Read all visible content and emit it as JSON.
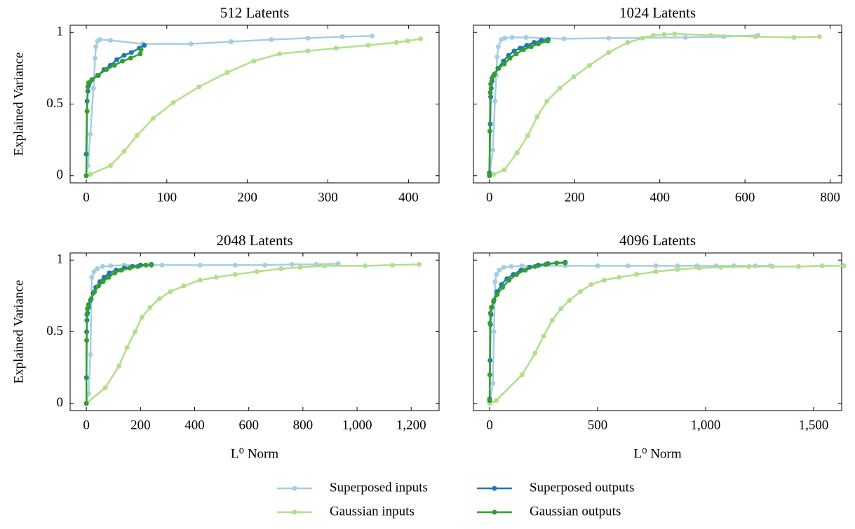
{
  "chart_data": [
    {
      "type": "line",
      "title": "512 Latents",
      "ylabel": "Explained Variance",
      "legend": "bottom",
      "xlim": [
        -20,
        438
      ],
      "xticks": [
        0,
        100,
        200,
        300,
        400
      ],
      "ylim": [
        -0.05,
        1.05
      ],
      "yticks": [
        0,
        0.5,
        1
      ],
      "show_ytick_labels": true,
      "series": [
        {
          "name": "Superposed inputs",
          "color": "#a6cee3",
          "x": [
            0,
            2,
            5,
            9,
            11,
            12,
            14,
            17,
            30,
            70,
            130,
            180,
            230,
            275,
            318,
            355
          ],
          "values": [
            0,
            0.07,
            0.29,
            0.61,
            0.82,
            0.9,
            0.94,
            0.95,
            0.945,
            0.92,
            0.92,
            0.935,
            0.95,
            0.96,
            0.97,
            0.975
          ]
        },
        {
          "name": "Superposed outputs",
          "color": "#1f78b4",
          "x": [
            0,
            1,
            2,
            3,
            4,
            7,
            15,
            22,
            30,
            38,
            47,
            56,
            66,
            72
          ],
          "values": [
            0.15,
            0.52,
            0.59,
            0.63,
            0.65,
            0.67,
            0.7,
            0.74,
            0.77,
            0.81,
            0.84,
            0.86,
            0.89,
            0.91
          ]
        },
        {
          "name": "Gaussian inputs",
          "color": "#b2df8a",
          "x": [
            0,
            5,
            30,
            47,
            63,
            83,
            108,
            140,
            175,
            208,
            240,
            275,
            310,
            350,
            385,
            399,
            415
          ],
          "values": [
            0,
            0.01,
            0.07,
            0.17,
            0.28,
            0.4,
            0.51,
            0.62,
            0.72,
            0.8,
            0.85,
            0.87,
            0.89,
            0.91,
            0.93,
            0.94,
            0.955
          ]
        },
        {
          "name": "Gaussian outputs",
          "color": "#33a02c",
          "x": [
            0,
            1,
            2,
            3,
            7,
            14,
            25,
            35,
            45,
            55,
            67,
            68
          ],
          "values": [
            0,
            0.45,
            0.62,
            0.65,
            0.67,
            0.7,
            0.74,
            0.77,
            0.8,
            0.82,
            0.85,
            0.88
          ]
        }
      ]
    },
    {
      "type": "line",
      "title": "1024 Latents",
      "xlim": [
        -37.5,
        827
      ],
      "xticks": [
        0,
        200,
        400,
        600,
        800
      ],
      "ylim": [
        -0.05,
        1.05
      ],
      "yticks": [
        0,
        0.5,
        1
      ],
      "show_ytick_labels": false,
      "series": [
        {
          "name": "Superposed inputs",
          "color": "#a6cee3",
          "x": [
            0,
            8,
            13,
            16,
            18,
            21,
            28,
            36,
            53,
            86,
            175,
            280,
            460,
            550,
            630
          ],
          "values": [
            0,
            0.18,
            0.52,
            0.7,
            0.83,
            0.9,
            0.95,
            0.96,
            0.965,
            0.965,
            0.955,
            0.96,
            0.965,
            0.97,
            0.98
          ]
        },
        {
          "name": "Superposed outputs",
          "color": "#1f78b4",
          "x": [
            0,
            2,
            3,
            4,
            6,
            10,
            20,
            33,
            45,
            58,
            72,
            88,
            105,
            122,
            138
          ],
          "values": [
            0.02,
            0.36,
            0.55,
            0.61,
            0.66,
            0.7,
            0.75,
            0.8,
            0.84,
            0.87,
            0.89,
            0.91,
            0.93,
            0.945,
            0.95
          ]
        },
        {
          "name": "Gaussian inputs",
          "color": "#b2df8a",
          "x": [
            0,
            10,
            35,
            65,
            90,
            112,
            135,
            165,
            198,
            235,
            280,
            325,
            360,
            385,
            410,
            435,
            520,
            625,
            715,
            775
          ],
          "values": [
            0,
            0.01,
            0.04,
            0.16,
            0.28,
            0.41,
            0.52,
            0.61,
            0.69,
            0.77,
            0.86,
            0.93,
            0.96,
            0.98,
            0.985,
            0.99,
            0.98,
            0.97,
            0.965,
            0.97
          ]
        },
        {
          "name": "Gaussian outputs",
          "color": "#33a02c",
          "x": [
            0,
            1,
            2,
            3,
            6,
            12,
            22,
            35,
            48,
            63,
            80,
            98,
            115,
            137
          ],
          "values": [
            0,
            0.31,
            0.58,
            0.64,
            0.68,
            0.71,
            0.75,
            0.78,
            0.82,
            0.85,
            0.88,
            0.9,
            0.92,
            0.94
          ]
        }
      ]
    },
    {
      "type": "line",
      "title": "2048 Latents",
      "ylabel": "Explained Variance",
      "xlabel": "L⁰ Norm",
      "xlim": [
        -60,
        1303
      ],
      "xticks": [
        0,
        200,
        400,
        600,
        800,
        {
          "value": 1000,
          "label": "1,000"
        },
        {
          "value": 1200,
          "label": "1,200"
        }
      ],
      "ylim": [
        -0.05,
        1.05
      ],
      "yticks": [
        0,
        0.5,
        1
      ],
      "show_ytick_labels": true,
      "series": [
        {
          "name": "Superposed inputs",
          "color": "#a6cee3",
          "x": [
            0,
            8,
            15,
            20,
            28,
            40,
            60,
            90,
            140,
            200,
            280,
            420,
            550,
            660,
            760,
            850,
            930
          ],
          "values": [
            0,
            0.07,
            0.34,
            0.88,
            0.92,
            0.94,
            0.955,
            0.96,
            0.965,
            0.965,
            0.965,
            0.965,
            0.965,
            0.965,
            0.97,
            0.97,
            0.975
          ]
        },
        {
          "name": "Superposed outputs",
          "color": "#1f78b4",
          "x": [
            0,
            1,
            2,
            4,
            8,
            15,
            25,
            35,
            50,
            65,
            85,
            110,
            140,
            170,
            200,
            240
          ],
          "values": [
            0.18,
            0.5,
            0.58,
            0.63,
            0.67,
            0.72,
            0.77,
            0.81,
            0.85,
            0.88,
            0.91,
            0.93,
            0.945,
            0.955,
            0.965,
            0.97
          ]
        },
        {
          "name": "Gaussian inputs",
          "color": "#b2df8a",
          "x": [
            0,
            70,
            120,
            150,
            180,
            205,
            235,
            270,
            310,
            360,
            420,
            480,
            550,
            630,
            720,
            790,
            880,
            1030,
            1130,
            1230
          ],
          "values": [
            0,
            0.11,
            0.26,
            0.39,
            0.5,
            0.6,
            0.67,
            0.73,
            0.78,
            0.82,
            0.86,
            0.88,
            0.9,
            0.92,
            0.94,
            0.95,
            0.96,
            0.96,
            0.965,
            0.97
          ]
        },
        {
          "name": "Gaussian outputs",
          "color": "#33a02c",
          "x": [
            0,
            1,
            2,
            4,
            8,
            18,
            30,
            45,
            62,
            82,
            105,
            130,
            160,
            190,
            220,
            240
          ],
          "values": [
            0,
            0.44,
            0.62,
            0.66,
            0.69,
            0.73,
            0.78,
            0.82,
            0.85,
            0.88,
            0.91,
            0.93,
            0.945,
            0.955,
            0.965,
            0.965
          ]
        }
      ]
    },
    {
      "type": "line",
      "title": "4096 Latents",
      "xlabel": "L⁰ Norm",
      "xlim": [
        -75,
        1630
      ],
      "xticks": [
        0,
        500,
        {
          "value": 1000,
          "label": "1,000"
        },
        {
          "value": 1500,
          "label": "1,500"
        }
      ],
      "ylim": [
        -0.05,
        1.05
      ],
      "yticks": [
        0,
        0.5,
        1
      ],
      "show_ytick_labels": false,
      "series": [
        {
          "name": "Superposed inputs",
          "color": "#a6cee3",
          "x": [
            0,
            15,
            20,
            25,
            32,
            45,
            65,
            100,
            150,
            230,
            350,
            500,
            640,
            770,
            870,
            960,
            1050,
            1130,
            1230,
            1300
          ],
          "values": [
            0,
            0.14,
            0.5,
            0.85,
            0.9,
            0.93,
            0.95,
            0.955,
            0.96,
            0.96,
            0.96,
            0.96,
            0.96,
            0.96,
            0.96,
            0.96,
            0.96,
            0.96,
            0.96,
            0.96
          ]
        },
        {
          "name": "Superposed outputs",
          "color": "#1f78b4",
          "x": [
            0,
            2,
            4,
            6,
            10,
            20,
            35,
            55,
            80,
            110,
            145,
            185,
            225,
            270,
            310,
            350
          ],
          "values": [
            0.03,
            0.3,
            0.55,
            0.62,
            0.67,
            0.72,
            0.78,
            0.83,
            0.87,
            0.9,
            0.93,
            0.95,
            0.965,
            0.975,
            0.98,
            0.985
          ]
        },
        {
          "name": "Gaussian inputs",
          "color": "#b2df8a",
          "x": [
            0,
            30,
            150,
            210,
            250,
            290,
            330,
            370,
            420,
            470,
            530,
            600,
            680,
            770,
            870,
            970,
            1070,
            1200,
            1310,
            1430,
            1540,
            1640
          ],
          "values": [
            0,
            0.02,
            0.2,
            0.35,
            0.47,
            0.58,
            0.66,
            0.72,
            0.78,
            0.83,
            0.86,
            0.88,
            0.9,
            0.92,
            0.935,
            0.945,
            0.95,
            0.955,
            0.955,
            0.955,
            0.96,
            0.96
          ]
        },
        {
          "name": "Gaussian outputs",
          "color": "#33a02c",
          "x": [
            0,
            1,
            2,
            4,
            8,
            18,
            35,
            60,
            90,
            125,
            165,
            210,
            260,
            310,
            350
          ],
          "values": [
            0.02,
            0.2,
            0.56,
            0.63,
            0.67,
            0.71,
            0.76,
            0.81,
            0.86,
            0.9,
            0.93,
            0.955,
            0.97,
            0.98,
            0.98
          ]
        }
      ]
    }
  ]
}
